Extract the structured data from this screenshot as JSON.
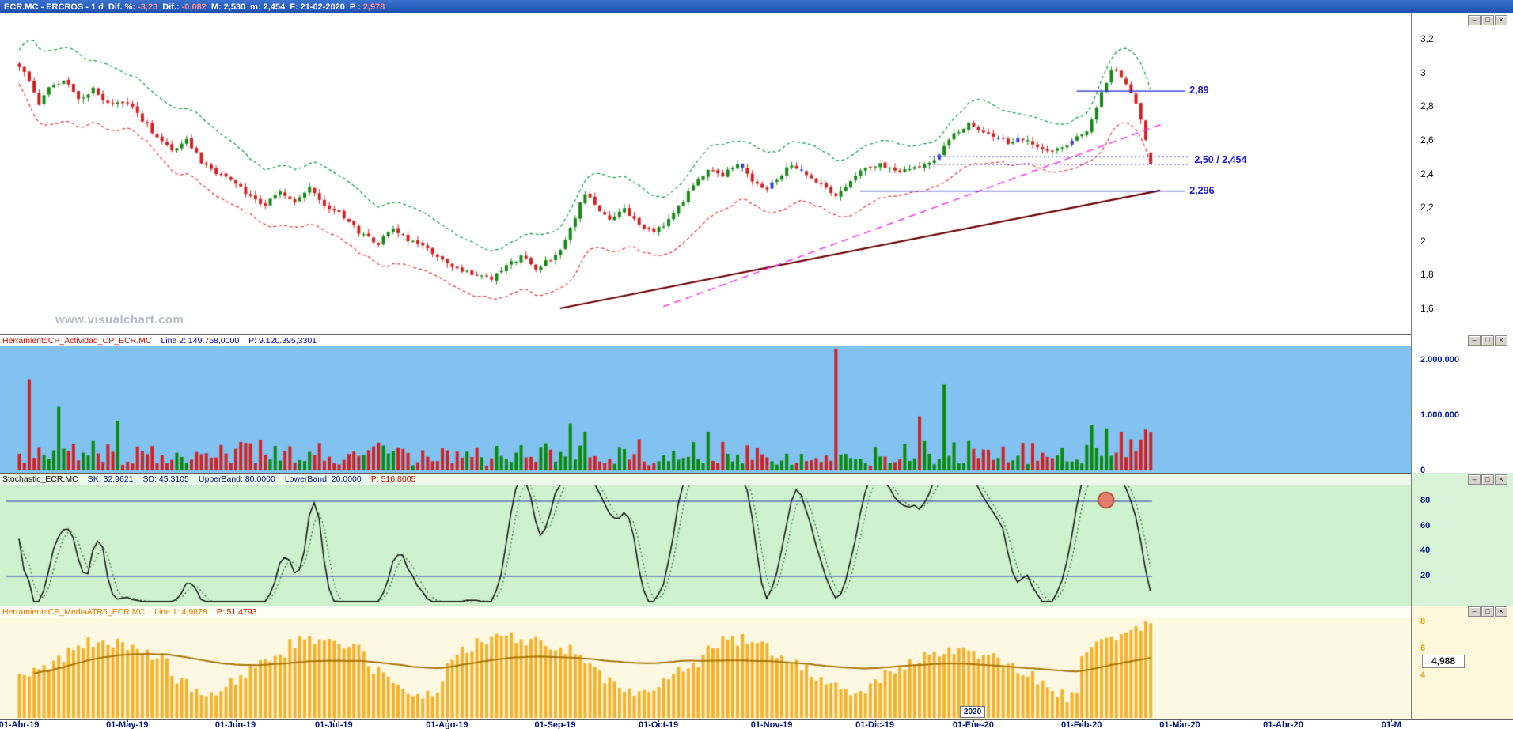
{
  "titlebar": {
    "title": "ECR.MC - ERCROS - 1 d",
    "stats": [
      {
        "label": "Dif. %:",
        "value": "-3,23",
        "value_color": "#ff9090"
      },
      {
        "label": "Dif.:",
        "value": "-0,082",
        "value_color": "#ff9090"
      },
      {
        "label": "M:",
        "value": "2,530",
        "value_color": "#ffffff"
      },
      {
        "label": "m:",
        "value": "2,454",
        "value_color": "#ffffff"
      },
      {
        "label": "F:",
        "value": "21-02-2020",
        "value_color": "#ffffff"
      },
      {
        "label": "P :",
        "value": "2,978",
        "value_color": "#ff9090"
      }
    ]
  },
  "watermark": "www.visualchart.com",
  "window_buttons": [
    {
      "name": "minimize-button",
      "glyph": "–"
    },
    {
      "name": "maximize-button",
      "glyph": "□"
    },
    {
      "name": "close-button",
      "glyph": "×"
    }
  ],
  "colors": {
    "candle_up": "#168a16",
    "candle_down": "#d42020",
    "candle_alt": "#2b3fd6",
    "band_upper": "#00a040",
    "band_lower": "#ee3030",
    "level_line": "#2222cc",
    "trend_support": "#6b0000",
    "trend_channel": "#f53df5",
    "vol_up": "#0a8a0a",
    "vol_down": "#d42020",
    "stoch_line": "#101010",
    "stoch_signal": "#2d6e2d",
    "stoch_band": "#2233bb",
    "marker_fill": "#e8705f",
    "marker_stroke": "#a83225",
    "atr_bar": "#f6b12a",
    "atr_ma": "#a87408"
  },
  "date_axis": {
    "labels": [
      {
        "text": "01-Abr-19",
        "i": 0
      },
      {
        "text": "01-May-19",
        "i": 22
      },
      {
        "text": "01-Jun-19",
        "i": 44
      },
      {
        "text": "01-Jul-19",
        "i": 64
      },
      {
        "text": "01-Ago-19",
        "i": 87
      },
      {
        "text": "01-Sep-19",
        "i": 109
      },
      {
        "text": "01-Oct-19",
        "i": 130
      },
      {
        "text": "01-Nov-19",
        "i": 153
      },
      {
        "text": "01-Dic-19",
        "i": 174
      },
      {
        "text": "01-Ene-20",
        "i": 194
      },
      {
        "text": "01-Feb-20",
        "i": 216
      },
      {
        "text": "01-Mar-20",
        "i": 236
      },
      {
        "text": "01-Abr-20",
        "i": 257
      },
      {
        "text": "01-M",
        "i": 279
      }
    ],
    "year_box": {
      "text": "2020",
      "i": 194
    }
  },
  "chart_data": [
    {
      "id": "price",
      "type": "candlestick",
      "title": "ECR.MC - ERCROS - 1 d",
      "candle_count": 231,
      "y_axis": {
        "min": 1.44,
        "max": 3.35,
        "ticks": [
          {
            "label": "3,2",
            "value": 3.2
          },
          {
            "label": "3",
            "value": 3.0
          },
          {
            "label": "2,8",
            "value": 2.8
          },
          {
            "label": "2,6",
            "value": 2.6
          },
          {
            "label": "2,4",
            "value": 2.4
          },
          {
            "label": "2,2",
            "value": 2.2
          },
          {
            "label": "2",
            "value": 2.0
          },
          {
            "label": "1,8",
            "value": 1.8
          },
          {
            "label": "1,6",
            "value": 1.6
          }
        ]
      },
      "close_anchors": [
        [
          0,
          3.02
        ],
        [
          2,
          2.96
        ],
        [
          4,
          2.82
        ],
        [
          6,
          2.9
        ],
        [
          9,
          2.96
        ],
        [
          12,
          2.84
        ],
        [
          15,
          2.9
        ],
        [
          18,
          2.82
        ],
        [
          22,
          2.83
        ],
        [
          25,
          2.72
        ],
        [
          28,
          2.62
        ],
        [
          31,
          2.54
        ],
        [
          34,
          2.6
        ],
        [
          37,
          2.47
        ],
        [
          40,
          2.4
        ],
        [
          44,
          2.34
        ],
        [
          47,
          2.26
        ],
        [
          50,
          2.21
        ],
        [
          53,
          2.29
        ],
        [
          56,
          2.23
        ],
        [
          59,
          2.31
        ],
        [
          62,
          2.21
        ],
        [
          64,
          2.19
        ],
        [
          67,
          2.11
        ],
        [
          70,
          2.03
        ],
        [
          73,
          1.99
        ],
        [
          76,
          2.06
        ],
        [
          79,
          2.01
        ],
        [
          82,
          1.96
        ],
        [
          85,
          1.91
        ],
        [
          87,
          1.87
        ],
        [
          90,
          1.83
        ],
        [
          93,
          1.8
        ],
        [
          96,
          1.77
        ],
        [
          99,
          1.85
        ],
        [
          102,
          1.91
        ],
        [
          105,
          1.84
        ],
        [
          108,
          1.89
        ],
        [
          110,
          1.95
        ],
        [
          112,
          2.07
        ],
        [
          115,
          2.29
        ],
        [
          117,
          2.21
        ],
        [
          120,
          2.13
        ],
        [
          123,
          2.19
        ],
        [
          126,
          2.09
        ],
        [
          129,
          2.06
        ],
        [
          131,
          2.1
        ],
        [
          134,
          2.2
        ],
        [
          137,
          2.33
        ],
        [
          140,
          2.43
        ],
        [
          143,
          2.39
        ],
        [
          146,
          2.46
        ],
        [
          149,
          2.36
        ],
        [
          152,
          2.31
        ],
        [
          154,
          2.37
        ],
        [
          157,
          2.46
        ],
        [
          160,
          2.39
        ],
        [
          163,
          2.33
        ],
        [
          166,
          2.26
        ],
        [
          169,
          2.36
        ],
        [
          172,
          2.43
        ],
        [
          175,
          2.45
        ],
        [
          178,
          2.41
        ],
        [
          181,
          2.43
        ],
        [
          184,
          2.46
        ],
        [
          187,
          2.51
        ],
        [
          190,
          2.63
        ],
        [
          193,
          2.7
        ],
        [
          195,
          2.66
        ],
        [
          198,
          2.63
        ],
        [
          201,
          2.58
        ],
        [
          204,
          2.61
        ],
        [
          207,
          2.56
        ],
        [
          210,
          2.53
        ],
        [
          213,
          2.57
        ],
        [
          215,
          2.61
        ],
        [
          217,
          2.66
        ],
        [
          219,
          2.8
        ],
        [
          221,
          2.94
        ],
        [
          222,
          3.0
        ],
        [
          223,
          3.02
        ],
        [
          224,
          2.97
        ],
        [
          226,
          2.89
        ],
        [
          228,
          2.73
        ],
        [
          229,
          2.6
        ],
        [
          230,
          2.454
        ]
      ],
      "last_candle": {
        "open": 2.522,
        "high": 2.53,
        "low": 2.454,
        "close": 2.454
      },
      "blue_candles": [
        147,
        153,
        159,
        187,
        199,
        203,
        214
      ],
      "bands": {
        "style": "dashed-envelope",
        "upper": "green",
        "lower": "red"
      },
      "levels": [
        {
          "label": "2,89",
          "value": 2.89,
          "style": "solid",
          "i_start": 215,
          "i_end": 237
        },
        {
          "label": "2,50 / 2,454",
          "values": [
            2.5,
            2.454
          ],
          "style": "dotted",
          "i_start": 185,
          "i_end": 238
        },
        {
          "label": "2,296",
          "value": 2.296,
          "style": "solid",
          "i_start": 171,
          "i_end": 237
        }
      ],
      "trendlines": [
        {
          "name": "support-trendline",
          "style": "solid",
          "width": 2.2,
          "from": {
            "i": 110,
            "price": 1.6
          },
          "to": {
            "i": 232,
            "price": 2.3
          }
        },
        {
          "name": "channel-trendline",
          "style": "dashed",
          "width": 1.6,
          "from": {
            "i": 131,
            "price": 1.61
          },
          "to": {
            "i": 233,
            "price": 2.7
          }
        }
      ]
    },
    {
      "id": "volume",
      "type": "bar",
      "header": [
        {
          "text": "HerramientoCP_Actividad_CP_ECR.MC",
          "color": "#cc1100"
        },
        {
          "text": "Line 2: 149.758,0000",
          "color": "#0000bb"
        },
        {
          "text": "P: 9.120.395,3301",
          "color": "#0000bb"
        }
      ],
      "y_ticks": [
        {
          "label": "2.000.000",
          "value": 2000000
        },
        {
          "label": "1.000.000",
          "value": 1000000
        },
        {
          "label": "0",
          "value": 0
        }
      ],
      "base_min": 80000,
      "base_rand": 420000,
      "spikes": {
        "2": 1650000,
        "8": 1150000,
        "20": 900000,
        "112": 850000,
        "115": 700000,
        "140": 700000,
        "166": 2200000,
        "183": 980000,
        "188": 1550000,
        "218": 820000,
        "221": 760000,
        "224": 700000,
        "229": 740000,
        "230": 690000
      }
    },
    {
      "id": "stochastic",
      "type": "line",
      "header": [
        {
          "text": "Stochastic_ECR.MC",
          "color": "#111111"
        },
        {
          "text": "SK: 32,9621",
          "color": "#00188c"
        },
        {
          "text": "SD: 45,3105",
          "color": "#00188c"
        },
        {
          "text": "UpperBand: 80,0000",
          "color": "#00188c"
        },
        {
          "text": "LowerBand: 20,0000",
          "color": "#00188c"
        },
        {
          "text": "P: 516,8005",
          "color": "#cc1100"
        }
      ],
      "upper_band": 80,
      "lower_band": 20,
      "lookback": 14,
      "smooth": 3,
      "y_ticks": [
        {
          "label": "80",
          "value": 80
        },
        {
          "label": "60",
          "value": 60
        },
        {
          "label": "40",
          "value": 40
        },
        {
          "label": "20",
          "value": 20
        }
      ],
      "marker": {
        "i": 221,
        "value": 81
      }
    },
    {
      "id": "atr",
      "type": "bar+line",
      "header": [
        {
          "text": "HerramientaCP_MediaATR5_ECR.MC",
          "color": "#e07800"
        },
        {
          "text": "Line 1: 4,9878",
          "color": "#e07800"
        },
        {
          "text": "P: 51,4793",
          "color": "#cc1100"
        }
      ],
      "y_ticks": [
        {
          "label": "8",
          "value": 8
        },
        {
          "label": "6",
          "value": 6
        },
        {
          "label": "4",
          "value": 4
        }
      ],
      "tag": "4,988",
      "gen": {
        "base": 2.2,
        "amp": 3.4,
        "freq": 0.072,
        "phase": 0.4,
        "noise": 0.9
      },
      "bonuses": [
        {
          "from": 10,
          "to": 30,
          "add": 0.8
        },
        {
          "from": 55,
          "to": 70,
          "add": 0.9
        },
        {
          "from": 87,
          "to": 100,
          "add": 1.6
        },
        {
          "from": 101,
          "to": 118,
          "add": 0.7
        },
        {
          "from": 140,
          "to": 152,
          "add": 0.9
        },
        {
          "from": 216,
          "to": 230,
          "add": 2.2
        }
      ],
      "ma_window": 50
    }
  ]
}
